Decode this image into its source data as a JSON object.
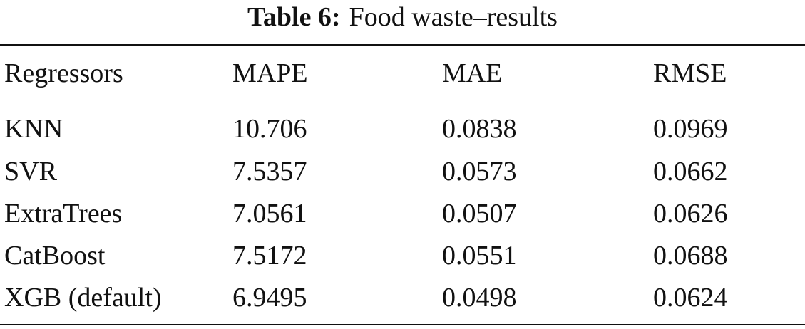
{
  "caption": {
    "label": "Table 6:",
    "title": "Food waste–results"
  },
  "table": {
    "headers": [
      "Regressors",
      "MAPE",
      "MAE",
      "RMSE"
    ],
    "rows": [
      [
        "KNN",
        "10.706",
        "0.0838",
        "0.0969"
      ],
      [
        "SVR",
        "7.5357",
        "0.0573",
        "0.0662"
      ],
      [
        "ExtraTrees",
        "7.0561",
        "0.0507",
        "0.0626"
      ],
      [
        "CatBoost",
        "7.5172",
        "0.0551",
        "0.0688"
      ],
      [
        "XGB (default)",
        "6.9495",
        "0.0498",
        "0.0624"
      ]
    ]
  }
}
